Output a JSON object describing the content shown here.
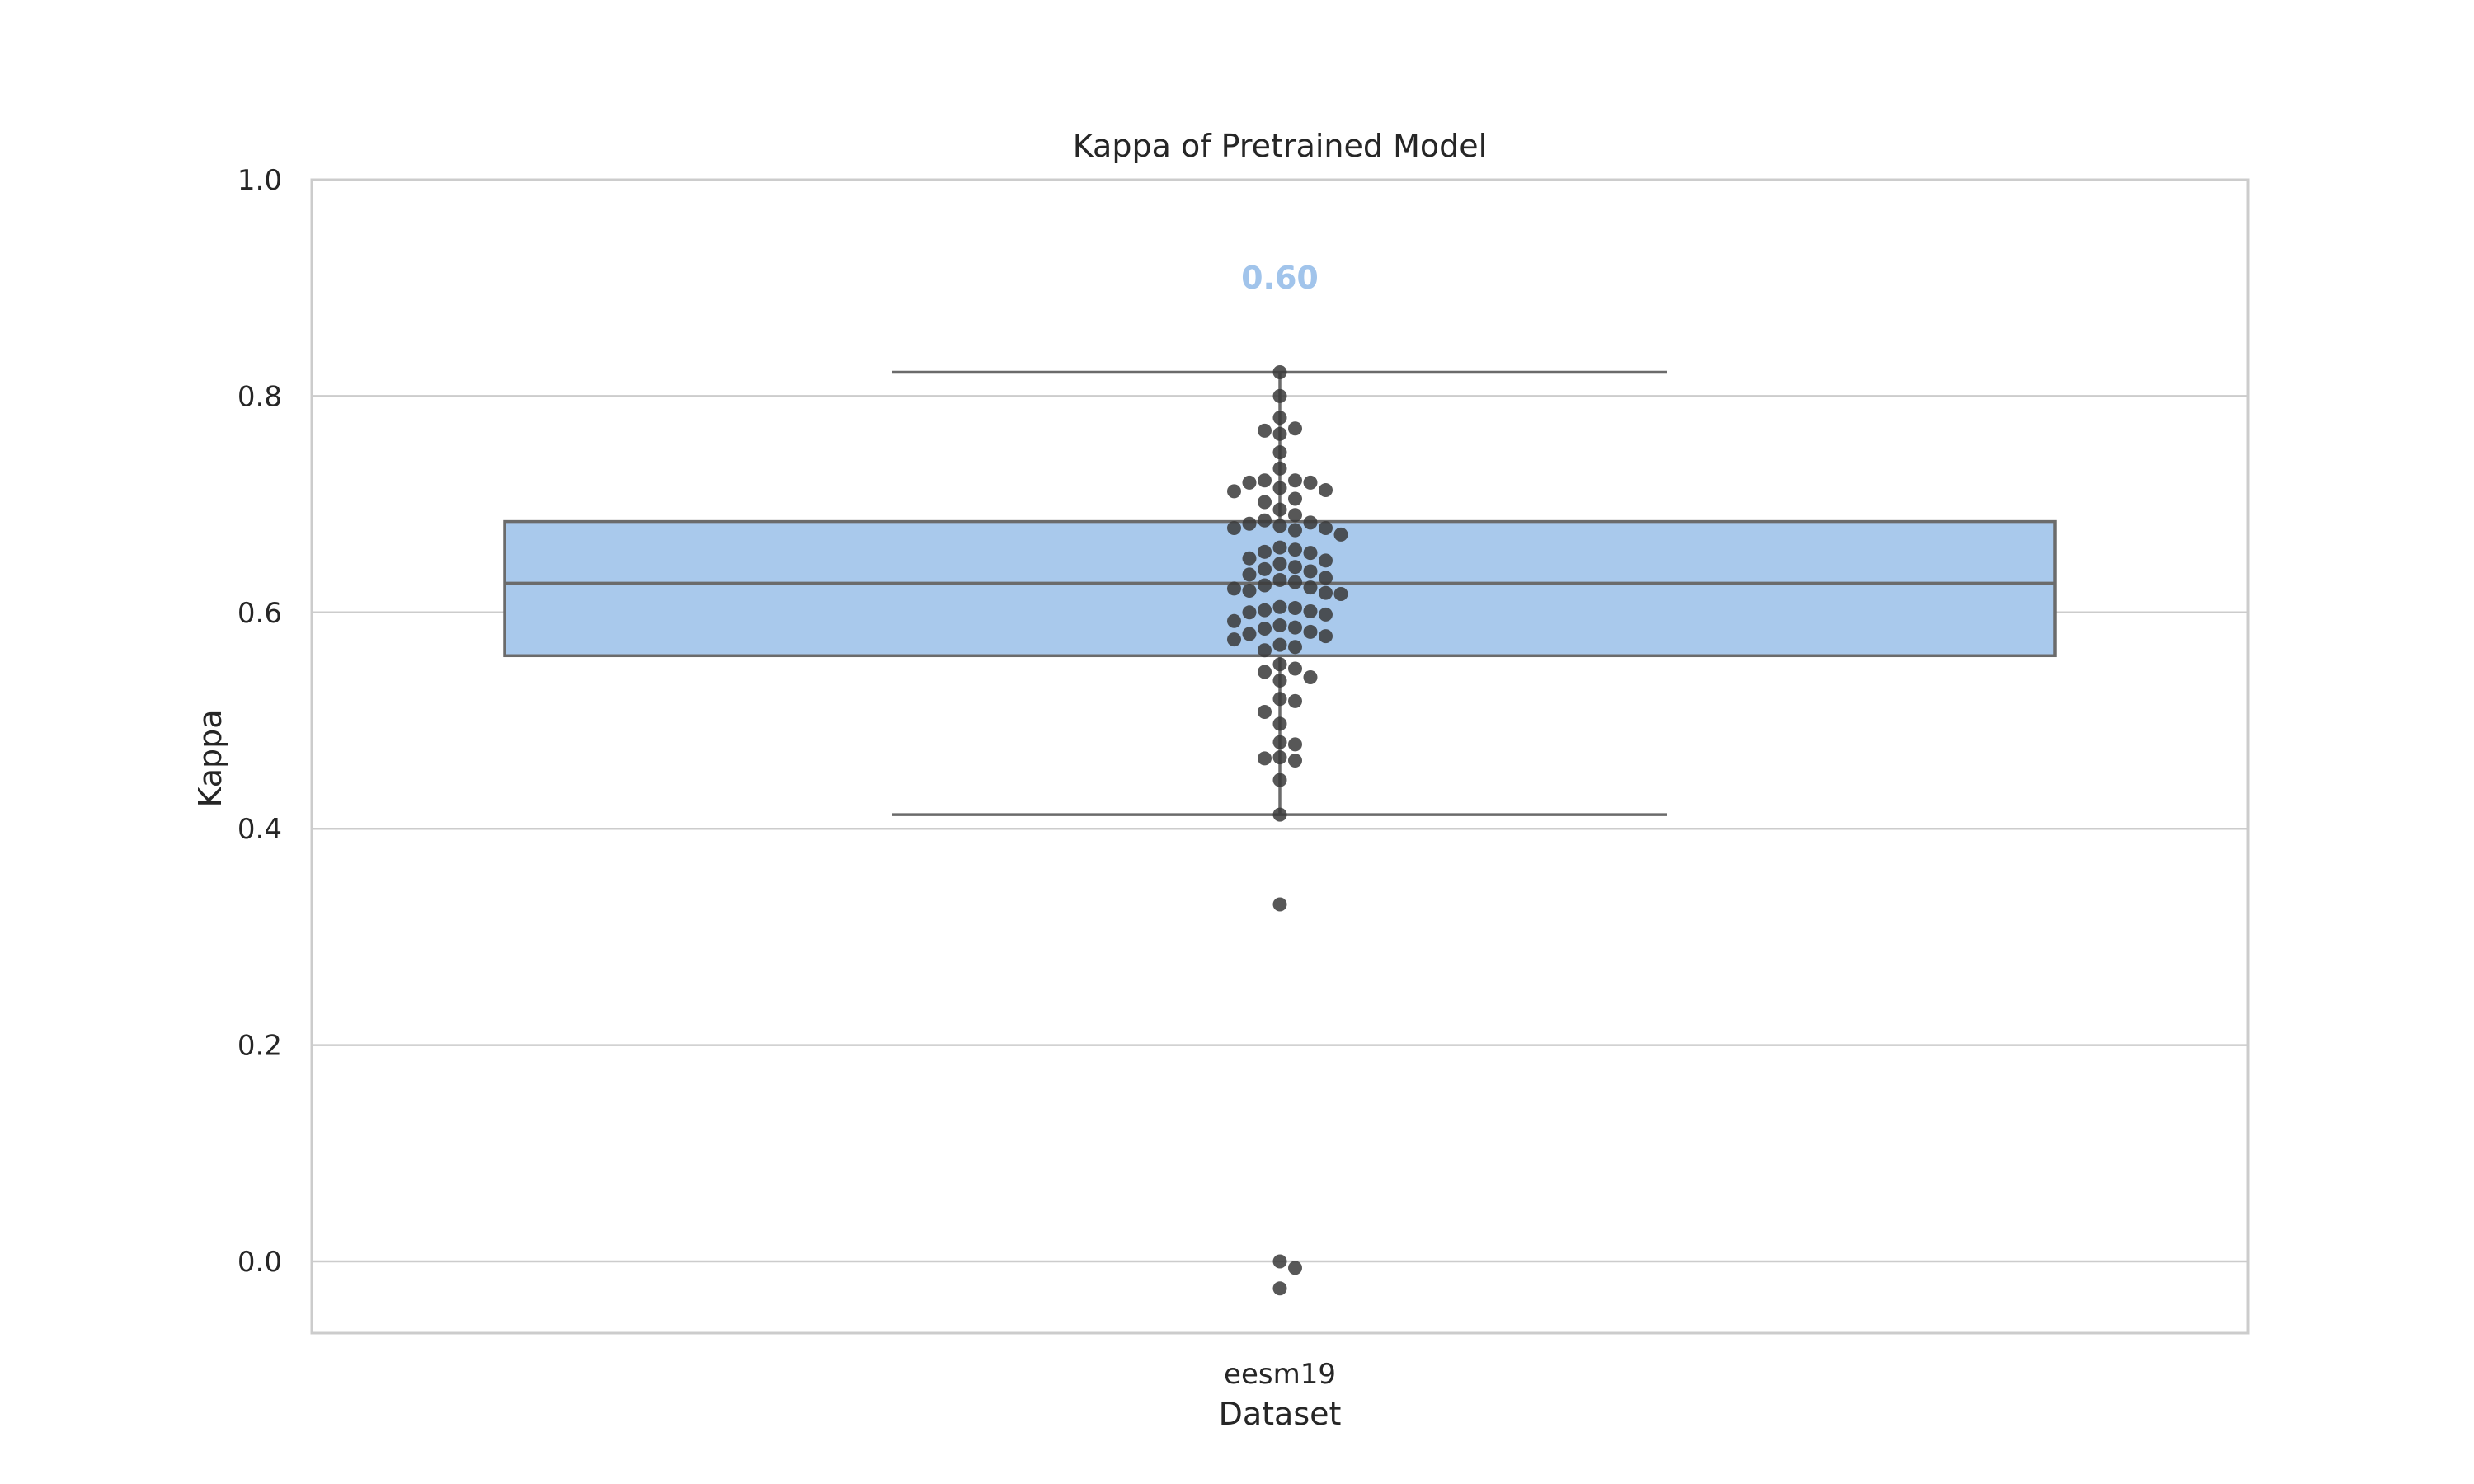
{
  "chart_data": {
    "type": "box",
    "title": "Kappa of Pretrained Model",
    "xlabel": "Dataset",
    "ylabel": "Kappa",
    "categories": [
      "eesm19"
    ],
    "ylim": [
      -0.065,
      1.0
    ],
    "yticks": [
      0.0,
      0.2,
      0.4,
      0.6,
      0.8,
      1.0
    ],
    "ytick_labels": [
      "0.0",
      "0.2",
      "0.4",
      "0.6",
      "0.8",
      "1.0"
    ],
    "grid": "horizontal",
    "box": {
      "category": "eesm19",
      "whisker_low": 0.413,
      "q1": 0.56,
      "median": 0.627,
      "q3": 0.684,
      "whisker_high": 0.822
    },
    "annotation": {
      "text": "0.60",
      "y": 0.91,
      "color": "#a1c4eb"
    },
    "colors": {
      "box_fill": "#a9c9ec",
      "box_edge": "#6b6b6b",
      "points": "#3a3a3a",
      "grid": "#cccccc",
      "frame": "#cccccc"
    },
    "points": [
      0.822,
      0.8,
      0.78,
      0.77,
      0.768,
      0.765,
      0.748,
      0.733,
      0.722,
      0.722,
      0.72,
      0.72,
      0.715,
      0.713,
      0.712,
      0.705,
      0.702,
      0.695,
      0.69,
      0.685,
      0.683,
      0.682,
      0.68,
      0.678,
      0.678,
      0.676,
      0.672,
      0.66,
      0.658,
      0.656,
      0.655,
      0.65,
      0.648,
      0.645,
      0.642,
      0.64,
      0.638,
      0.635,
      0.632,
      0.63,
      0.628,
      0.625,
      0.623,
      0.622,
      0.62,
      0.618,
      0.617,
      0.605,
      0.604,
      0.602,
      0.601,
      0.6,
      0.598,
      0.592,
      0.588,
      0.586,
      0.585,
      0.582,
      0.58,
      0.578,
      0.575,
      0.57,
      0.568,
      0.565,
      0.552,
      0.548,
      0.545,
      0.54,
      0.537,
      0.52,
      0.518,
      0.508,
      0.497,
      0.48,
      0.478,
      0.466,
      0.465,
      0.463,
      0.445,
      0.413,
      0.33,
      0.0,
      -0.006,
      -0.025
    ]
  }
}
